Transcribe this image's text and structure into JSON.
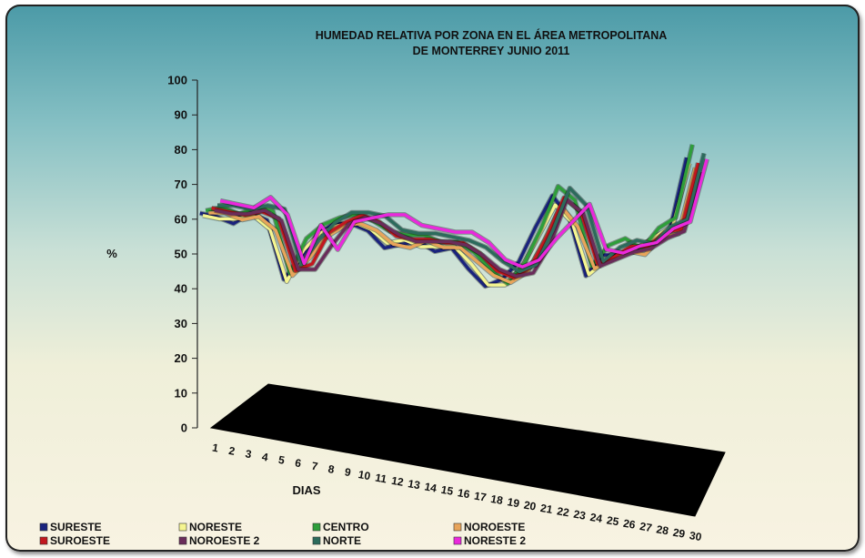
{
  "chart_data": {
    "type": "line",
    "title_lines": [
      "HUMEDAD RELATIVA  POR ZONA   EN EL ÁREA  METROPOLITANA",
      "DE MONTERREY JUNIO 2011"
    ],
    "xlabel": "DIAS",
    "ylabel": "%",
    "ylim": [
      0,
      100
    ],
    "yticks": [
      0,
      10,
      20,
      30,
      40,
      50,
      60,
      70,
      80,
      90,
      100
    ],
    "x": [
      1,
      2,
      3,
      4,
      5,
      6,
      7,
      8,
      9,
      10,
      11,
      12,
      13,
      14,
      15,
      16,
      17,
      18,
      19,
      20,
      21,
      22,
      23,
      24,
      25,
      26,
      27,
      28,
      29,
      30
    ],
    "legend_position": "bottom",
    "grid": false,
    "series": [
      {
        "name": "SURESTE",
        "color": "#1a237e",
        "values": [
          63,
          62,
          60,
          63,
          61,
          44,
          50,
          57,
          60,
          60,
          58,
          53,
          54,
          55,
          52,
          53,
          47,
          42,
          44,
          49,
          59,
          68,
          62,
          45,
          51,
          51,
          52,
          56,
          58,
          79
        ]
      },
      {
        "name": "NORESTE",
        "color": "#f5f590",
        "values": [
          62,
          61,
          61,
          62,
          58,
          43,
          52,
          57,
          59,
          60,
          58,
          54,
          55,
          53,
          53,
          53,
          48,
          42,
          42,
          47,
          56,
          65,
          60,
          45,
          49,
          51,
          53,
          56,
          59,
          77
        ]
      },
      {
        "name": "CENTRO",
        "color": "#2e9e3a",
        "values": [
          63,
          64,
          62,
          64,
          63,
          45,
          55,
          59,
          61,
          62,
          60,
          57,
          56,
          56,
          54,
          54,
          51,
          46,
          42,
          48,
          58,
          70,
          66,
          47,
          53,
          55,
          52,
          58,
          61,
          82
        ]
      },
      {
        "name": "NOROESTE",
        "color": "#e8a45a",
        "values": [
          62,
          62,
          60,
          61,
          57,
          44,
          49,
          55,
          58,
          59,
          57,
          53,
          52,
          54,
          52,
          52,
          48,
          44,
          42,
          45,
          54,
          64,
          58,
          46,
          49,
          51,
          50,
          55,
          56,
          75
        ]
      },
      {
        "name": "SUROESTE",
        "color": "#c2181f",
        "values": [
          63,
          62,
          61,
          62,
          60,
          45,
          47,
          56,
          59,
          61,
          59,
          55,
          54,
          54,
          53,
          53,
          50,
          45,
          43,
          46,
          55,
          66,
          62,
          47,
          49,
          52,
          52,
          56,
          57,
          76
        ]
      },
      {
        "name": "NOROESTE 2",
        "color": "#6a2c5a",
        "values": [
          62,
          61,
          61,
          62,
          59,
          45,
          45,
          52,
          58,
          60,
          58,
          55,
          53,
          53,
          53,
          52,
          49,
          45,
          43,
          44,
          52,
          65,
          61,
          46,
          48,
          50,
          51,
          54,
          56,
          73
        ]
      },
      {
        "name": "NORTE",
        "color": "#2c6b5c",
        "values": [
          63,
          63,
          62,
          63,
          62,
          46,
          53,
          58,
          61,
          61,
          60,
          56,
          55,
          55,
          54,
          53,
          51,
          47,
          44,
          46,
          56,
          68,
          63,
          47,
          51,
          53,
          52,
          57,
          59,
          78
        ]
      },
      {
        "name": "NORESTE 2",
        "color": "#ea28dc",
        "values": [
          64,
          63,
          62,
          65,
          60,
          46,
          57,
          50,
          58,
          59,
          60,
          60,
          57,
          56,
          55,
          55,
          52,
          47,
          45,
          47,
          53,
          58,
          63,
          50,
          49,
          51,
          52,
          56,
          58,
          76
        ]
      }
    ]
  }
}
